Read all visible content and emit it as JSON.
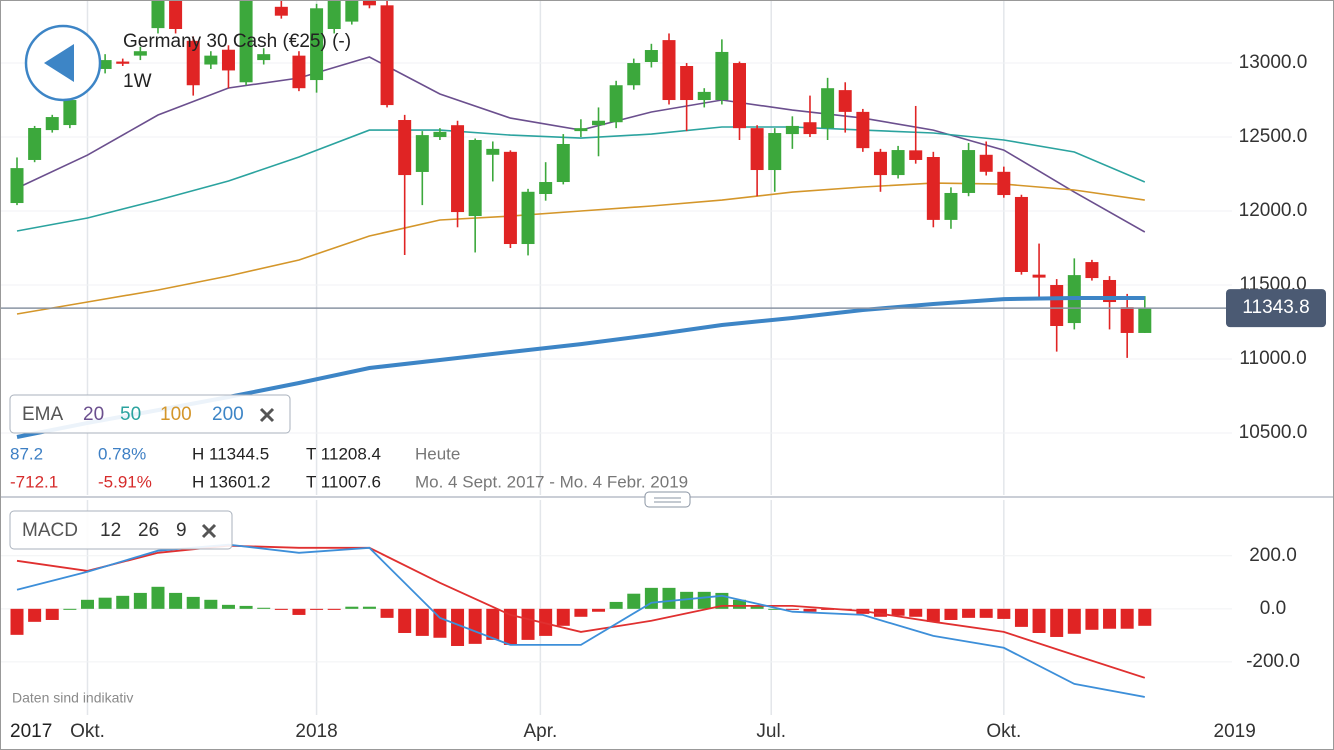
{
  "header": {
    "title": "Germany 30 Cash (€25) (-)",
    "timeframe": "1W"
  },
  "stats": [
    [
      "87.2",
      "0.78%",
      "H 11344.5",
      "T 11208.4",
      "Heute"
    ],
    [
      "-712.1",
      "-5.91%",
      "H 13601.2",
      "T 11007.6",
      "Mo. 4 Sept. 2017 - Mo. 4 Febr. 2019"
    ]
  ],
  "note": "Daten sind indikativ",
  "chart_data": [
    {
      "type": "candlestick",
      "legend_title": "EMA",
      "up_color": "#3ca83c",
      "down_color": "#e02424",
      "open": [
        12054,
        12345,
        12547,
        12581,
        12960,
        12960,
        13010,
        13050,
        13236,
        13430,
        13150,
        12990,
        13090,
        12870,
        13020,
        13380,
        13050,
        12885,
        13230,
        13280,
        13420,
        13390,
        12615,
        12264,
        12500,
        12580,
        11966,
        12380,
        12400,
        11777,
        12115,
        12196,
        12540,
        12580,
        12600,
        12850,
        13007,
        13155,
        12980,
        12750,
        12750,
        13000,
        12560,
        12277,
        12520,
        12600,
        12560,
        12817,
        12670,
        12400,
        12243,
        12410,
        12365,
        11940,
        12122,
        12380,
        12265,
        12095,
        11570,
        11500,
        11243,
        11655,
        11534,
        11350,
        11176
      ],
      "high": [
        12362,
        12575,
        12650,
        12790,
        13060,
        13060,
        13030,
        13110,
        13440,
        13440,
        13180,
        13080,
        13120,
        13440,
        13100,
        13420,
        13080,
        13400,
        13440,
        13440,
        13601.2,
        13420,
        12650,
        12540,
        12560,
        12610,
        12490,
        12470,
        12410,
        12150,
        12330,
        12520,
        12620,
        12700,
        12880,
        13030,
        13130,
        13200,
        13000,
        12830,
        13160,
        13010,
        12580,
        12560,
        12640,
        12780,
        12900,
        12870,
        12690,
        12420,
        12440,
        12710,
        12400,
        12160,
        12460,
        12470,
        12300,
        12110,
        11780,
        11540,
        11680,
        11670,
        11560,
        11440,
        11425
      ],
      "low": [
        12040,
        12330,
        12530,
        12560,
        12920,
        12930,
        12980,
        13020,
        13200,
        13200,
        12780,
        12960,
        12830,
        12850,
        12990,
        13300,
        12810,
        12800,
        13200,
        13260,
        13370,
        12700,
        11703,
        12040,
        12480,
        11890,
        11720,
        12200,
        11750,
        11700,
        12070,
        12180,
        12500,
        12370,
        12560,
        12820,
        12970,
        12720,
        12540,
        12700,
        12720,
        12480,
        12100,
        12130,
        12420,
        12500,
        12480,
        12530,
        12400,
        12130,
        12220,
        12320,
        11890,
        11880,
        12100,
        12240,
        12090,
        11570,
        11400,
        11050,
        11200,
        11530,
        11200,
        11007.6,
        11176
      ],
      "close": [
        12290,
        12561,
        12635,
        12750,
        13010,
        13020,
        12995,
        13080,
        13430,
        13230,
        12850,
        13050,
        12950,
        13420,
        13060,
        13320,
        12830,
        13370,
        13420,
        13420,
        13390,
        12716,
        12243,
        12513,
        12535,
        11993,
        12480,
        12420,
        11777,
        12130,
        12196,
        12453,
        12560,
        12610,
        12850,
        13000,
        13088,
        12750,
        12750,
        12805,
        13075,
        12560,
        12277,
        12527,
        12575,
        12520,
        12830,
        12670,
        12425,
        12243,
        12412,
        12345,
        11940,
        12122,
        12412,
        12265,
        12108,
        11588,
        11550,
        11223,
        11567,
        11547,
        11385,
        11176,
        11343.8
      ],
      "series": [
        {
          "name": "20",
          "color": "#6b4f8e",
          "x": [
            0,
            4,
            8,
            12,
            16,
            20,
            24,
            28,
            32,
            36,
            40,
            44,
            48,
            52,
            56,
            60,
            64
          ],
          "values": [
            12155,
            12378,
            12649,
            12831,
            12899,
            13041,
            12791,
            12628,
            12547,
            12669,
            12750,
            12682,
            12628,
            12547,
            12412,
            12128,
            11858
          ]
        },
        {
          "name": "50",
          "color": "#2ba39f",
          "x": [
            0,
            4,
            8,
            12,
            16,
            20,
            24,
            28,
            32,
            36,
            40,
            44,
            48,
            52,
            56,
            60,
            64
          ],
          "values": [
            11865,
            11953,
            12074,
            12203,
            12365,
            12547,
            12547,
            12513,
            12493,
            12520,
            12568,
            12568,
            12547,
            12527,
            12480,
            12399,
            12196
          ]
        },
        {
          "name": "100",
          "color": "#d4962a",
          "x": [
            0,
            4,
            8,
            12,
            16,
            20,
            24,
            28,
            32,
            36,
            40,
            44,
            48,
            52,
            56,
            60,
            64
          ],
          "values": [
            11304,
            11385,
            11466,
            11561,
            11669,
            11831,
            11939,
            11966,
            12000,
            12034,
            12074,
            12128,
            12162,
            12189,
            12182,
            12142,
            12074
          ]
        },
        {
          "name": "200",
          "color": "#3d85c6",
          "x": [
            0,
            4,
            8,
            12,
            16,
            20,
            24,
            28,
            32,
            36,
            40,
            44,
            48,
            52,
            56,
            60,
            64
          ],
          "values": [
            10473,
            10568,
            10655,
            10743,
            10838,
            10939,
            10993,
            11047,
            11101,
            11162,
            11230,
            11277,
            11331,
            11372,
            11405,
            11412,
            11412
          ]
        }
      ],
      "last_price": 11343.8,
      "xlim": [
        -0.965,
        69.8
      ],
      "ylim": [
        10081,
        13426
      ],
      "yticks": [
        {
          "value": 10500,
          "label": "10500.0"
        },
        {
          "value": 11000,
          "label": "11000.0"
        },
        {
          "value": 11500,
          "label": "11500.0"
        },
        {
          "value": 12000,
          "label": "12000.0"
        },
        {
          "value": 12500,
          "label": "12500.0"
        },
        {
          "value": 13000,
          "label": "13000.0"
        }
      ]
    },
    {
      "type": "macd",
      "legend_title": "MACD",
      "params": [
        12,
        26,
        9
      ],
      "up_color": "#3ca83c",
      "down_color": "#e02424",
      "histogram": [
        -98,
        -49,
        -42,
        0,
        34,
        42,
        49,
        60,
        83,
        60,
        45,
        34,
        15,
        11,
        4,
        -4,
        -23,
        -4,
        -4,
        8,
        8,
        -34,
        -91,
        -102,
        -109,
        -140,
        -132,
        -117,
        -136,
        -117,
        -102,
        -64,
        -30,
        -11,
        26,
        57,
        79,
        79,
        64,
        64,
        60,
        34,
        11,
        0,
        -4,
        -11,
        -4,
        -4,
        -19,
        -30,
        -26,
        -30,
        -49,
        -42,
        -34,
        -34,
        -38,
        -68,
        -91,
        -106,
        -94,
        -79,
        -75,
        -75,
        -64
      ],
      "series": [
        {
          "color": "#e03030",
          "x": [
            0,
            4,
            8,
            12,
            16,
            20,
            24,
            28,
            32,
            36,
            40,
            44,
            48,
            52,
            56,
            60,
            64
          ],
          "values": [
            181,
            143,
            211,
            238,
            230,
            230,
            98,
            -23,
            -87,
            -45,
            11,
            11,
            -8,
            -49,
            -87,
            -174,
            -260
          ]
        },
        {
          "color": "#3d8fd9",
          "x": [
            0,
            4,
            8,
            12,
            16,
            20,
            24,
            28,
            32,
            36,
            40,
            44,
            48,
            52,
            56,
            60,
            64
          ],
          "values": [
            72,
            140,
            219,
            242,
            211,
            230,
            -34,
            -136,
            -136,
            23,
            49,
            -11,
            -23,
            -102,
            -147,
            -283,
            -332
          ]
        }
      ],
      "xlim": [
        -0.965,
        69.8
      ],
      "ylim": [
        -400,
        410
      ],
      "yticks": [
        {
          "value": -200,
          "label": "-200.0"
        },
        {
          "value": 0,
          "label": "0.0"
        },
        {
          "value": 200,
          "label": "200.0"
        }
      ],
      "sticky_label": "2017",
      "xticks": [
        {
          "value": 4,
          "label": "Okt."
        },
        {
          "value": 17,
          "label": "2018"
        },
        {
          "value": 29.7,
          "label": "Apr."
        },
        {
          "value": 42.8,
          "label": "Jul."
        },
        {
          "value": 56,
          "label": "Okt."
        },
        {
          "value": 69.1,
          "label": "2019"
        }
      ]
    }
  ]
}
